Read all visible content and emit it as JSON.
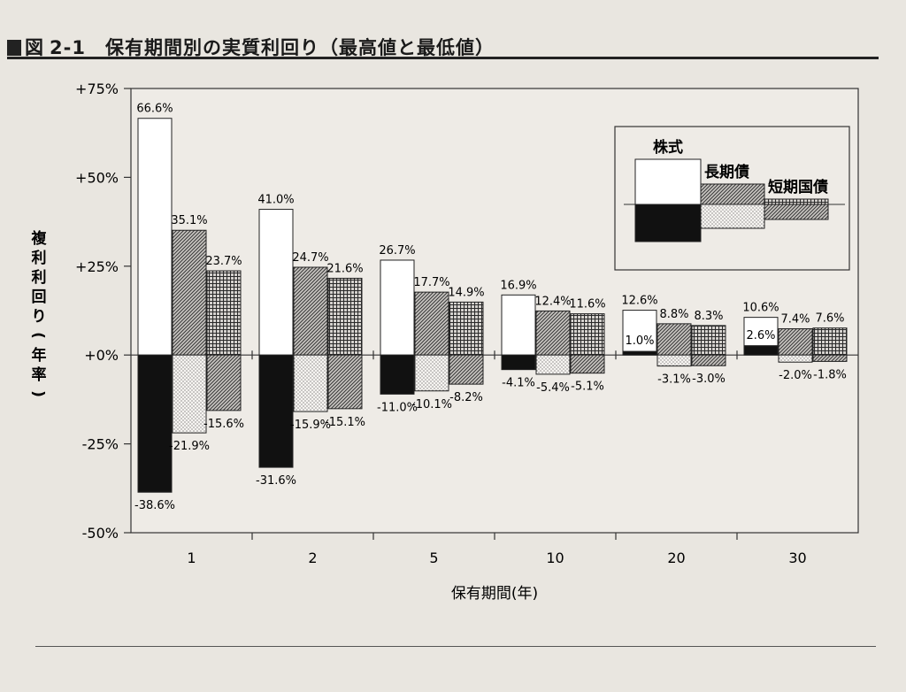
{
  "figure": {
    "number_prefix": "図",
    "number": "2-1",
    "title": "保有期間別の実質利回り（最高値と最低値）"
  },
  "chart_data": {
    "type": "bar",
    "title": "保有期間別の実質利回り（最高値と最低値）",
    "xlabel": "保有期間(年)",
    "ylabel": "複利利回り(年率)",
    "ylim": [
      -50,
      75
    ],
    "y_ticks": [
      "+75%",
      "+50%",
      "+25%",
      "+0%",
      "-25%",
      "-50%"
    ],
    "y_tick_values": [
      75,
      50,
      25,
      0,
      -25,
      -50
    ],
    "grid": false,
    "legend": "top-right",
    "categories": [
      "1",
      "2",
      "5",
      "10",
      "20",
      "30"
    ],
    "series": [
      {
        "name": "株式",
        "max": [
          66.6,
          41.0,
          26.7,
          16.9,
          12.6,
          10.6
        ],
        "min": [
          -38.6,
          -31.6,
          -11.0,
          -4.1,
          1.0,
          2.6
        ],
        "max_labels": [
          "66.6%",
          "41.0%",
          "26.7%",
          "16.9%",
          "12.6%",
          "10.6%"
        ],
        "min_labels": [
          "-38.6%",
          "-31.6%",
          "-11.0%",
          "-4.1%",
          "1.0%",
          "2.6%"
        ],
        "upper_fill": "#ffffff",
        "lower_fill": "#111111"
      },
      {
        "name": "長期債",
        "max": [
          35.1,
          24.7,
          17.7,
          12.4,
          8.8,
          7.4
        ],
        "min": [
          -21.9,
          -15.9,
          -10.1,
          -5.4,
          -3.1,
          -2.0
        ],
        "max_labels": [
          "35.1%",
          "24.7%",
          "17.7%",
          "12.4%",
          "8.8%",
          "7.4%"
        ],
        "min_labels": [
          "-21.9%",
          "-15.9%",
          "-10.1%",
          "-5.4%",
          "-3.1%",
          "-2.0%"
        ],
        "upper_fill": "diagonal-hatch",
        "lower_fill": "dots"
      },
      {
        "name": "短期国債",
        "max": [
          23.7,
          21.6,
          14.9,
          11.6,
          8.3,
          7.6
        ],
        "min": [
          -15.6,
          -15.1,
          -8.2,
          -5.1,
          -3.0,
          -1.8
        ],
        "max_labels": [
          "23.7%",
          "21.6%",
          "14.9%",
          "11.6%",
          "8.3%",
          "7.6%"
        ],
        "min_labels": [
          "-15.6%",
          "-15.1%",
          "-8.2%",
          "-5.1%",
          "-3.0%",
          "-1.8%"
        ],
        "upper_fill": "cross-hatch",
        "lower_fill": "diagonal-hatch"
      }
    ]
  }
}
